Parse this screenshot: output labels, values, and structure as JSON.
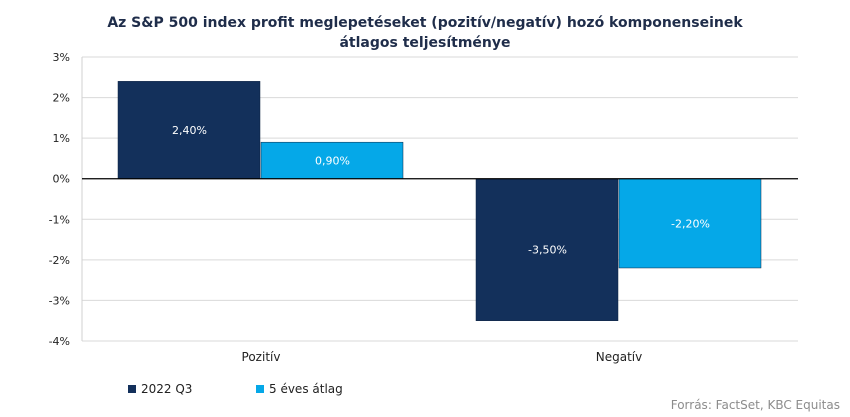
{
  "chart_data": {
    "type": "bar",
    "title_line1": "Az S&P 500 index profit meglepetéseket (pozitív/negatív) hozó komponenseinek",
    "title_line2": "átlagos teljesítménye",
    "categories": [
      "Pozitív",
      "Negatív"
    ],
    "series": [
      {
        "name": "2022 Q3",
        "values": [
          2.4,
          -3.5
        ],
        "labels": [
          "2,40%",
          "-3,50%"
        ],
        "color": "#13305b"
      },
      {
        "name": "5 éves átlag",
        "values": [
          0.9,
          -2.2
        ],
        "labels": [
          "0,90%",
          "-2,20%"
        ],
        "color": "#05a8e8"
      }
    ],
    "ylim": [
      -4,
      3
    ],
    "yticks": [
      3,
      2,
      1,
      0,
      -1,
      -2,
      -3,
      -4
    ],
    "ytick_labels": [
      "3%",
      "2%",
      "1%",
      "0%",
      "-1%",
      "-2%",
      "-3%",
      "-4%"
    ],
    "grid": true,
    "legend_position": "bottom-left",
    "source": "Forrás: FactSet, KBC Equitas"
  }
}
